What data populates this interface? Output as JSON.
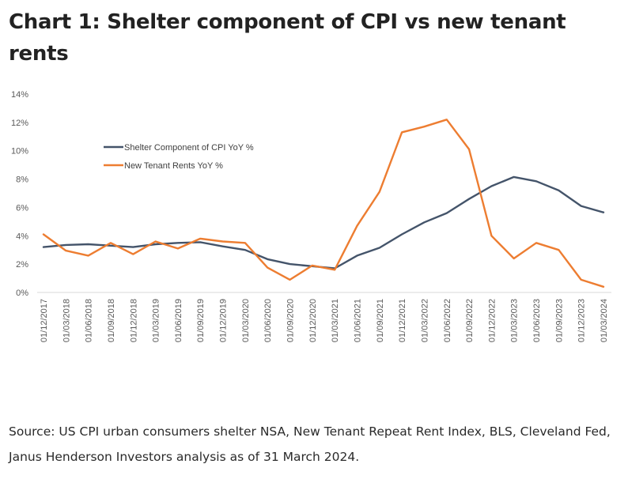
{
  "title": "Chart 1: Shelter component of CPI vs new tenant rents",
  "source": "Source: US CPI urban consumers shelter NSA, New Tenant Repeat Rent Index, BLS, Cleveland Fed, Janus Henderson Investors analysis as of 31 March 2024.",
  "chart_data": {
    "type": "line",
    "categories": [
      "01/12/2017",
      "01/03/2018",
      "01/06/2018",
      "01/09/2018",
      "01/12/2018",
      "01/03/2019",
      "01/06/2019",
      "01/09/2019",
      "01/12/2019",
      "01/03/2020",
      "01/06/2020",
      "01/09/2020",
      "01/12/2020",
      "01/03/2021",
      "01/06/2021",
      "01/09/2021",
      "01/12/2021",
      "01/03/2022",
      "01/06/2022",
      "01/09/2022",
      "01/12/2022",
      "01/03/2023",
      "01/06/2023",
      "01/09/2023",
      "01/12/2023",
      "01/03/2024"
    ],
    "series": [
      {
        "name": "Shelter Component of CPI YoY %",
        "color": "#44546a",
        "values": [
          3.2,
          3.35,
          3.4,
          3.3,
          3.2,
          3.4,
          3.5,
          3.55,
          3.25,
          3.0,
          2.35,
          2.0,
          1.85,
          1.7,
          2.6,
          3.15,
          4.1,
          4.95,
          5.6,
          6.6,
          7.5,
          8.15,
          7.85,
          7.2,
          6.1,
          5.65
        ]
      },
      {
        "name": "New Tenant Rents YoY %",
        "color": "#ed7d31",
        "values": [
          4.1,
          2.95,
          2.6,
          3.5,
          2.7,
          3.6,
          3.1,
          3.8,
          3.6,
          3.5,
          1.75,
          0.9,
          1.9,
          1.6,
          4.7,
          7.1,
          11.3,
          11.7,
          12.2,
          10.1,
          4.0,
          2.4,
          3.5,
          3.0,
          0.9,
          0.4
        ]
      }
    ],
    "yticks": [
      "0%",
      "2%",
      "4%",
      "6%",
      "8%",
      "10%",
      "12%",
      "14%"
    ],
    "ylim": [
      0,
      14
    ],
    "grid": false,
    "legend_position": "top-left"
  }
}
